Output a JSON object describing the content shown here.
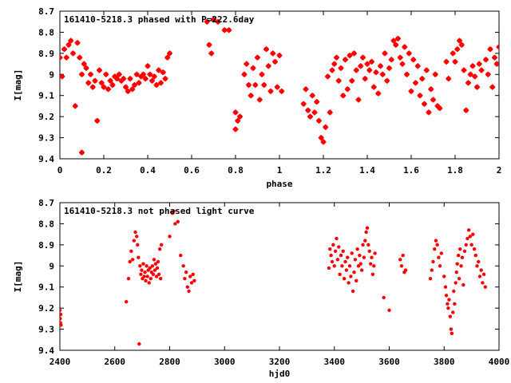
{
  "chart_data": [
    {
      "type": "scatter",
      "title": "161410-5218.3 phased with P=222.6day",
      "xlabel": "phase",
      "ylabel": "I[mag]",
      "xlim": [
        0,
        2
      ],
      "ylim": [
        9.4,
        8.7
      ],
      "y_inverted": true,
      "grid": false,
      "marker_color": "#ff0000",
      "xticks": [
        "0",
        "0.2",
        "0.4",
        "0.6",
        "0.8",
        "1",
        "1.2",
        "1.4",
        "1.6",
        "1.8",
        "2"
      ],
      "xtick_values": [
        0,
        0.2,
        0.4,
        0.6,
        0.8,
        1.0,
        1.2,
        1.4,
        1.6,
        1.8,
        2.0
      ],
      "yticks": [
        "8.7",
        "8.8",
        "8.9",
        "9",
        "9.1",
        "9.2",
        "9.3",
        "9.4"
      ],
      "ytick_values": [
        8.7,
        8.8,
        8.9,
        9.0,
        9.1,
        9.2,
        9.3,
        9.4
      ],
      "points": [
        [
          0.0,
          8.92
        ],
        [
          0.01,
          9.01
        ],
        [
          0.02,
          8.88
        ],
        [
          0.03,
          8.92
        ],
        [
          0.04,
          8.86
        ],
        [
          0.05,
          8.84
        ],
        [
          0.06,
          8.9
        ],
        [
          0.07,
          9.15
        ],
        [
          0.08,
          8.85
        ],
        [
          0.09,
          8.92
        ],
        [
          0.1,
          9.37
        ],
        [
          0.1,
          9.0
        ],
        [
          0.11,
          8.95
        ],
        [
          0.12,
          8.97
        ],
        [
          0.13,
          9.04
        ],
        [
          0.14,
          9.0
        ],
        [
          0.15,
          9.06
        ],
        [
          0.16,
          9.03
        ],
        [
          0.17,
          9.22
        ],
        [
          0.18,
          8.98
        ],
        [
          0.19,
          9.04
        ],
        [
          0.2,
          9.06
        ],
        [
          0.21,
          9.0
        ],
        [
          0.22,
          9.07
        ],
        [
          0.23,
          9.03
        ],
        [
          0.24,
          9.05
        ],
        [
          0.25,
          9.01
        ],
        [
          0.26,
          9.02
        ],
        [
          0.27,
          9.0
        ],
        [
          0.28,
          9.03
        ],
        [
          0.29,
          9.02
        ],
        [
          0.3,
          9.06
        ],
        [
          0.31,
          9.08
        ],
        [
          0.32,
          9.02
        ],
        [
          0.33,
          9.07
        ],
        [
          0.34,
          9.05
        ],
        [
          0.35,
          9.0
        ],
        [
          0.36,
          9.04
        ],
        [
          0.37,
          9.01
        ],
        [
          0.38,
          9.0
        ],
        [
          0.39,
          9.02
        ],
        [
          0.4,
          8.96
        ],
        [
          0.41,
          9.0
        ],
        [
          0.42,
          9.03
        ],
        [
          0.43,
          9.01
        ],
        [
          0.44,
          9.05
        ],
        [
          0.45,
          8.98
        ],
        [
          0.46,
          9.04
        ],
        [
          0.47,
          8.99
        ],
        [
          0.48,
          9.02
        ],
        [
          0.49,
          8.92
        ],
        [
          0.5,
          8.9
        ],
        [
          0.67,
          8.75
        ],
        [
          0.68,
          8.86
        ],
        [
          0.69,
          8.9
        ],
        [
          0.7,
          8.74
        ],
        [
          0.72,
          8.75
        ],
        [
          0.75,
          8.79
        ],
        [
          0.77,
          8.79
        ],
        [
          0.8,
          9.18
        ],
        [
          0.8,
          9.26
        ],
        [
          0.81,
          9.22
        ],
        [
          0.82,
          9.2
        ],
        [
          0.84,
          9.0
        ],
        [
          0.85,
          8.95
        ],
        [
          0.86,
          9.05
        ],
        [
          0.87,
          9.1
        ],
        [
          0.88,
          8.97
        ],
        [
          0.89,
          9.05
        ],
        [
          0.9,
          8.92
        ],
        [
          0.91,
          9.12
        ],
        [
          0.92,
          9.0
        ],
        [
          0.93,
          9.05
        ],
        [
          0.94,
          8.88
        ],
        [
          0.95,
          8.96
        ],
        [
          0.96,
          9.08
        ],
        [
          0.97,
          8.9
        ],
        [
          0.98,
          8.94
        ],
        [
          0.99,
          9.06
        ],
        [
          1.0,
          8.91
        ],
        [
          1.01,
          9.08
        ],
        [
          1.11,
          9.14
        ],
        [
          1.12,
          9.07
        ],
        [
          1.13,
          9.17
        ],
        [
          1.14,
          9.2
        ],
        [
          1.15,
          9.1
        ],
        [
          1.16,
          9.18
        ],
        [
          1.17,
          9.13
        ],
        [
          1.18,
          9.22
        ],
        [
          1.19,
          9.3
        ],
        [
          1.2,
          9.32
        ],
        [
          1.21,
          9.25
        ],
        [
          1.22,
          9.01
        ],
        [
          1.23,
          9.18
        ],
        [
          1.24,
          8.98
        ],
        [
          1.25,
          8.95
        ],
        [
          1.26,
          8.92
        ],
        [
          1.27,
          9.03
        ],
        [
          1.28,
          8.97
        ],
        [
          1.29,
          9.1
        ],
        [
          1.3,
          8.93
        ],
        [
          1.31,
          9.07
        ],
        [
          1.32,
          8.91
        ],
        [
          1.33,
          9.03
        ],
        [
          1.34,
          8.9
        ],
        [
          1.35,
          8.98
        ],
        [
          1.36,
          9.12
        ],
        [
          1.37,
          8.96
        ],
        [
          1.38,
          8.92
        ],
        [
          1.39,
          9.02
        ],
        [
          1.4,
          8.95
        ],
        [
          1.41,
          8.98
        ],
        [
          1.42,
          8.94
        ],
        [
          1.43,
          9.06
        ],
        [
          1.44,
          8.99
        ],
        [
          1.45,
          9.09
        ],
        [
          1.46,
          8.96
        ],
        [
          1.47,
          9.0
        ],
        [
          1.48,
          8.9
        ],
        [
          1.49,
          9.03
        ],
        [
          1.5,
          8.97
        ],
        [
          1.51,
          8.93
        ],
        [
          1.52,
          8.84
        ],
        [
          1.53,
          8.86
        ],
        [
          1.54,
          8.83
        ],
        [
          1.55,
          8.92
        ],
        [
          1.56,
          8.95
        ],
        [
          1.57,
          8.87
        ],
        [
          1.58,
          9.0
        ],
        [
          1.59,
          8.9
        ],
        [
          1.6,
          9.08
        ],
        [
          1.61,
          8.93
        ],
        [
          1.62,
          9.04
        ],
        [
          1.63,
          8.96
        ],
        [
          1.64,
          9.1
        ],
        [
          1.65,
          9.02
        ],
        [
          1.66,
          9.14
        ],
        [
          1.67,
          8.98
        ],
        [
          1.68,
          9.18
        ],
        [
          1.69,
          9.07
        ],
        [
          1.7,
          9.12
        ],
        [
          1.71,
          9.0
        ],
        [
          1.72,
          9.15
        ],
        [
          1.73,
          9.16
        ],
        [
          1.76,
          8.94
        ],
        [
          1.77,
          9.02
        ],
        [
          1.79,
          8.9
        ],
        [
          1.8,
          8.94
        ],
        [
          1.81,
          8.88
        ],
        [
          1.82,
          8.84
        ],
        [
          1.83,
          8.86
        ],
        [
          1.84,
          8.98
        ],
        [
          1.85,
          9.17
        ],
        [
          1.86,
          9.04
        ],
        [
          1.87,
          9.0
        ],
        [
          1.88,
          8.96
        ],
        [
          1.89,
          9.01
        ],
        [
          1.9,
          9.06
        ],
        [
          1.91,
          8.95
        ],
        [
          1.92,
          8.98
        ],
        [
          1.94,
          8.93
        ],
        [
          1.95,
          9.0
        ],
        [
          1.96,
          8.88
        ],
        [
          1.97,
          9.06
        ],
        [
          1.98,
          8.92
        ],
        [
          1.99,
          8.95
        ],
        [
          2.0,
          8.87
        ]
      ]
    },
    {
      "type": "scatter",
      "title": "161410-5218.3 not phased light curve",
      "xlabel": "hjd0",
      "ylabel": "I[mag]",
      "xlim": [
        2400,
        4000
      ],
      "ylim": [
        9.4,
        8.7
      ],
      "y_inverted": true,
      "grid": false,
      "marker_color": "#ff0000",
      "xticks": [
        "2400",
        "2600",
        "2800",
        "3000",
        "3200",
        "3400",
        "3600",
        "3800",
        "4000"
      ],
      "xtick_values": [
        2400,
        2600,
        2800,
        3000,
        3200,
        3400,
        3600,
        3800,
        4000
      ],
      "yticks": [
        "8.7",
        "8.8",
        "8.9",
        "9",
        "9.1",
        "9.2",
        "9.3",
        "9.4"
      ],
      "ytick_values": [
        8.7,
        8.8,
        8.9,
        9.0,
        9.1,
        9.2,
        9.3,
        9.4
      ],
      "points": [
        [
          2400,
          9.21
        ],
        [
          2401,
          9.25
        ],
        [
          2402,
          9.27
        ],
        [
          2403,
          9.23
        ],
        [
          2404,
          9.28
        ],
        [
          2642,
          9.17
        ],
        [
          2650,
          9.06
        ],
        [
          2655,
          8.98
        ],
        [
          2660,
          8.93
        ],
        [
          2665,
          8.97
        ],
        [
          2670,
          8.88
        ],
        [
          2675,
          8.84
        ],
        [
          2680,
          8.86
        ],
        [
          2683,
          8.9
        ],
        [
          2686,
          8.96
        ],
        [
          2689,
          9.37
        ],
        [
          2692,
          9.0
        ],
        [
          2695,
          9.04
        ],
        [
          2698,
          9.02
        ],
        [
          2701,
          9.06
        ],
        [
          2704,
          8.99
        ],
        [
          2707,
          9.05
        ],
        [
          2710,
          9.03
        ],
        [
          2713,
          9.07
        ],
        [
          2716,
          9.0
        ],
        [
          2719,
          9.05
        ],
        [
          2722,
          9.02
        ],
        [
          2725,
          9.08
        ],
        [
          2728,
          9.01
        ],
        [
          2731,
          9.06
        ],
        [
          2734,
          9.03
        ],
        [
          2737,
          9.0
        ],
        [
          2740,
          9.04
        ],
        [
          2743,
          8.97
        ],
        [
          2746,
          9.02
        ],
        [
          2749,
          8.99
        ],
        [
          2752,
          9.05
        ],
        [
          2755,
          9.01
        ],
        [
          2758,
          8.98
        ],
        [
          2761,
          9.04
        ],
        [
          2764,
          8.92
        ],
        [
          2767,
          9.06
        ],
        [
          2770,
          8.9
        ],
        [
          2800,
          8.86
        ],
        [
          2810,
          8.75
        ],
        [
          2815,
          8.74
        ],
        [
          2820,
          8.8
        ],
        [
          2830,
          8.79
        ],
        [
          2840,
          8.95
        ],
        [
          2850,
          9.0
        ],
        [
          2855,
          9.06
        ],
        [
          2860,
          9.03
        ],
        [
          2865,
          9.1
        ],
        [
          2870,
          9.12
        ],
        [
          2875,
          9.05
        ],
        [
          2880,
          9.08
        ],
        [
          2885,
          9.04
        ],
        [
          2890,
          9.07
        ],
        [
          3380,
          9.01
        ],
        [
          3384,
          8.92
        ],
        [
          3388,
          8.95
        ],
        [
          3392,
          8.98
        ],
        [
          3396,
          8.9
        ],
        [
          3400,
          9.0
        ],
        [
          3404,
          8.93
        ],
        [
          3408,
          8.87
        ],
        [
          3412,
          8.97
        ],
        [
          3416,
          8.91
        ],
        [
          3420,
          9.04
        ],
        [
          3424,
          8.95
        ],
        [
          3428,
          9.0
        ],
        [
          3432,
          8.93
        ],
        [
          3436,
          9.06
        ],
        [
          3440,
          8.98
        ],
        [
          3444,
          9.02
        ],
        [
          3448,
          8.96
        ],
        [
          3452,
          9.08
        ],
        [
          3456,
          9.0
        ],
        [
          3460,
          9.05
        ],
        [
          3464,
          8.94
        ],
        [
          3468,
          9.12
        ],
        [
          3472,
          9.03
        ],
        [
          3476,
          8.97
        ],
        [
          3480,
          9.07
        ],
        [
          3484,
          8.92
        ],
        [
          3488,
          9.0
        ],
        [
          3492,
          8.95
        ],
        [
          3496,
          8.99
        ],
        [
          3500,
          9.02
        ],
        [
          3504,
          8.9
        ],
        [
          3508,
          8.96
        ],
        [
          3512,
          8.88
        ],
        [
          3516,
          8.84
        ],
        [
          3520,
          8.82
        ],
        [
          3524,
          8.9
        ],
        [
          3528,
          8.93
        ],
        [
          3532,
          8.99
        ],
        [
          3536,
          8.96
        ],
        [
          3540,
          9.04
        ],
        [
          3544,
          9.0
        ],
        [
          3548,
          8.94
        ],
        [
          3580,
          9.15
        ],
        [
          3600,
          9.21
        ],
        [
          3640,
          8.97
        ],
        [
          3645,
          9.0
        ],
        [
          3650,
          8.95
        ],
        [
          3655,
          9.03
        ],
        [
          3660,
          9.02
        ],
        [
          3750,
          9.06
        ],
        [
          3755,
          9.02
        ],
        [
          3760,
          8.98
        ],
        [
          3765,
          8.92
        ],
        [
          3770,
          8.88
        ],
        [
          3775,
          8.9
        ],
        [
          3780,
          8.96
        ],
        [
          3785,
          9.0
        ],
        [
          3790,
          8.94
        ],
        [
          3800,
          9.05
        ],
        [
          3805,
          9.1
        ],
        [
          3808,
          9.14
        ],
        [
          3812,
          9.18
        ],
        [
          3815,
          9.2
        ],
        [
          3818,
          9.16
        ],
        [
          3822,
          9.24
        ],
        [
          3825,
          9.3
        ],
        [
          3828,
          9.32
        ],
        [
          3832,
          9.22
        ],
        [
          3835,
          9.12
        ],
        [
          3838,
          9.18
        ],
        [
          3842,
          9.08
        ],
        [
          3845,
          9.03
        ],
        [
          3848,
          8.99
        ],
        [
          3852,
          8.95
        ],
        [
          3855,
          9.06
        ],
        [
          3858,
          8.92
        ],
        [
          3862,
          9.0
        ],
        [
          3866,
          8.96
        ],
        [
          3870,
          9.09
        ],
        [
          3875,
          8.93
        ],
        [
          3880,
          8.9
        ],
        [
          3885,
          8.87
        ],
        [
          3890,
          8.83
        ],
        [
          3895,
          8.86
        ],
        [
          3900,
          8.9
        ],
        [
          3905,
          8.85
        ],
        [
          3910,
          8.92
        ],
        [
          3915,
          8.95
        ],
        [
          3920,
          9.0
        ],
        [
          3925,
          8.98
        ],
        [
          3930,
          9.05
        ],
        [
          3935,
          9.02
        ],
        [
          3940,
          9.08
        ],
        [
          3945,
          9.04
        ],
        [
          3950,
          9.1
        ]
      ]
    }
  ]
}
